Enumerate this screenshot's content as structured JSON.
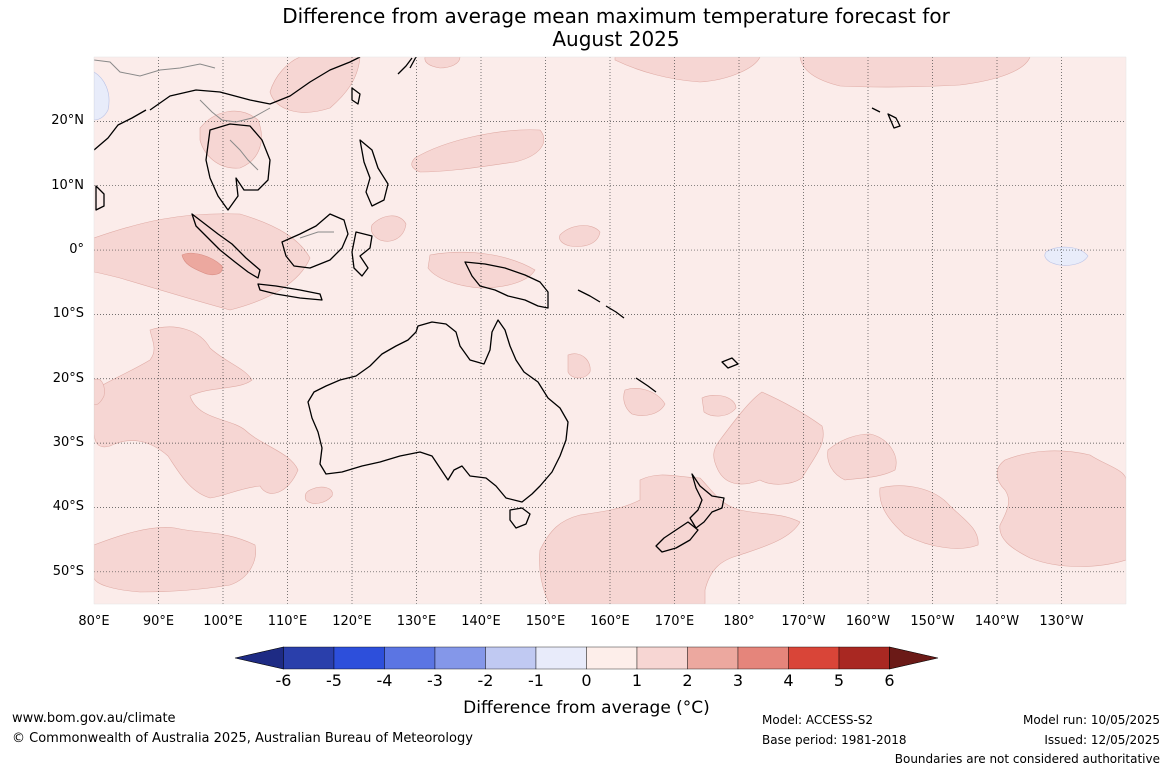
{
  "title": {
    "line1": "Difference from average mean maximum temperature forecast for",
    "line2": "August 2025"
  },
  "map": {
    "lon_range": [
      80,
      240
    ],
    "lat_range": [
      -55,
      30
    ],
    "lat_ticks": [
      {
        "value": 20,
        "label": "20°N"
      },
      {
        "value": 10,
        "label": "10°N"
      },
      {
        "value": 0,
        "label": "0°"
      },
      {
        "value": -10,
        "label": "10°S"
      },
      {
        "value": -20,
        "label": "20°S"
      },
      {
        "value": -30,
        "label": "30°S"
      },
      {
        "value": -40,
        "label": "40°S"
      },
      {
        "value": -50,
        "label": "50°S"
      }
    ],
    "lon_ticks": [
      {
        "value": 80,
        "label": "80°E"
      },
      {
        "value": 90,
        "label": "90°E"
      },
      {
        "value": 100,
        "label": "100°E"
      },
      {
        "value": 110,
        "label": "110°E"
      },
      {
        "value": 120,
        "label": "120°E"
      },
      {
        "value": 130,
        "label": "130°E"
      },
      {
        "value": 140,
        "label": "140°E"
      },
      {
        "value": 150,
        "label": "150°E"
      },
      {
        "value": 160,
        "label": "160°E"
      },
      {
        "value": 170,
        "label": "170°E"
      },
      {
        "value": 180,
        "label": "180°"
      },
      {
        "value": 190,
        "label": "170°W"
      },
      {
        "value": 200,
        "label": "160°W"
      },
      {
        "value": 210,
        "label": "150°W"
      },
      {
        "value": 220,
        "label": "140°W"
      },
      {
        "value": 230,
        "label": "130°W"
      }
    ],
    "background_anomaly_class": "0 to 1",
    "colors": {
      "class_0_1": "#fbecea",
      "class_1_2": "#f6d6d3",
      "class_2_3": "#eca89f",
      "class_m1_0": "#e8ecfa",
      "land_outline": "#000000",
      "border": "#8a8a8a",
      "grid": "#444444"
    }
  },
  "colorbar": {
    "title": "Difference from average (°C)",
    "ticks": [
      "-6",
      "-5",
      "-4",
      "-3",
      "-2",
      "-1",
      "0",
      "1",
      "2",
      "3",
      "4",
      "5",
      "6"
    ],
    "colors": [
      "#1e2b84",
      "#2a3fab",
      "#2d4fdb",
      "#5b75e3",
      "#8497e9",
      "#c0c9f2",
      "#e8ebfa",
      "#fdeeea",
      "#f7d6d3",
      "#eca89f",
      "#e5857b",
      "#d94538",
      "#a92822",
      "#6b1a17"
    ]
  },
  "footer": {
    "website": "www.bom.gov.au/climate",
    "copyright": "© Commonwealth of Australia 2025, Australian Bureau of Meteorology",
    "model": "Model: ACCESS-S2",
    "base_period": "Base period: 1981-2018",
    "model_run": "Model run: 10/05/2025",
    "issued": "Issued: 12/05/2025",
    "disclaimer": "Boundaries are not considered authoritative"
  }
}
